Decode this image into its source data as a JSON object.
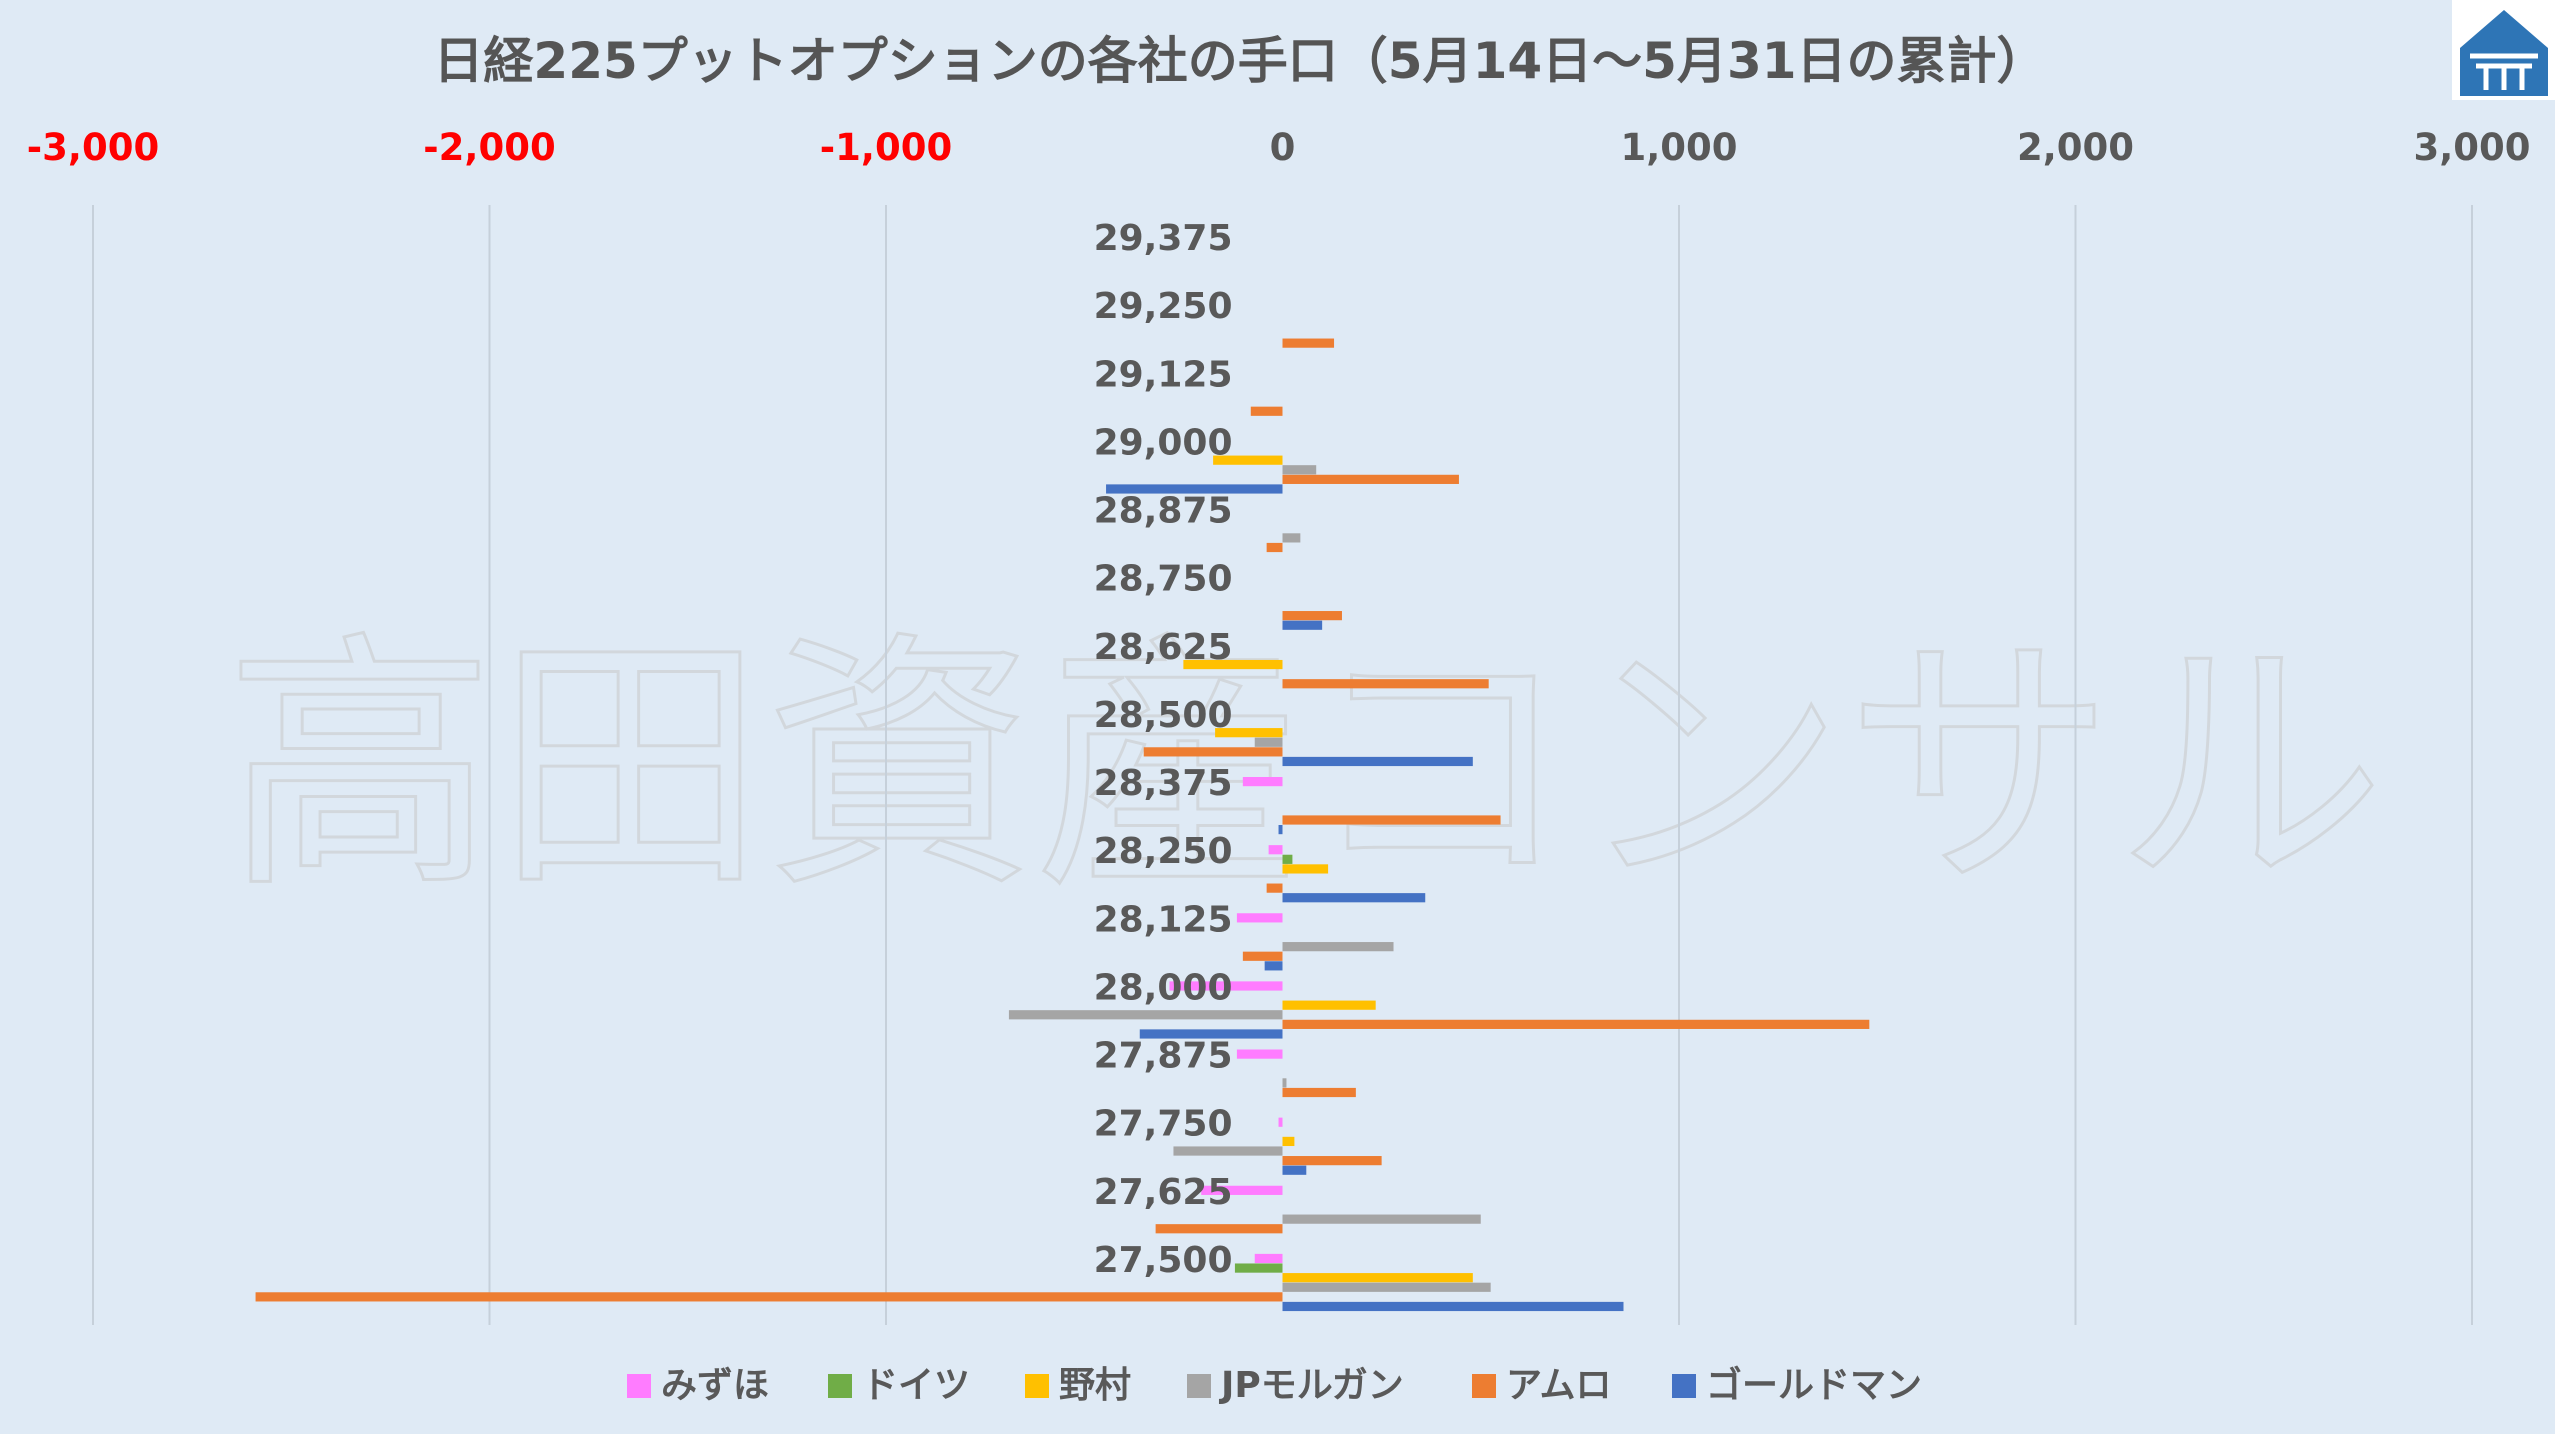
{
  "chart_data": {
    "type": "bar",
    "orientation": "horizontal",
    "title": "日経225プットオプションの各社の手口（5月14日～5月31日の累計）",
    "watermark": "高田資産コンサル",
    "xlim": [
      -3000,
      3000
    ],
    "xticks": [
      -3000,
      -2000,
      -1000,
      0,
      1000,
      2000,
      3000
    ],
    "xtick_labels": [
      "-3,000",
      "-2,000",
      "-1,000",
      "0",
      "1,000",
      "2,000",
      "3,000"
    ],
    "negative_tick_color": "#ff0000",
    "positive_tick_color": "#595959",
    "grid": true,
    "legend_position": "bottom",
    "categories": [
      "29,375",
      "29,250",
      "29,125",
      "29,000",
      "28,875",
      "28,750",
      "28,625",
      "28,500",
      "28,375",
      "28,250",
      "28,125",
      "28,000",
      "27,875",
      "27,750",
      "27,625",
      "27,500"
    ],
    "series": [
      {
        "name": "みずほ",
        "color": "#ff7cff",
        "values": [
          0,
          0,
          0,
          0,
          0,
          0,
          0,
          0,
          -100,
          -35,
          -115,
          -285,
          -115,
          -10,
          -205,
          -70
        ]
      },
      {
        "name": "ドイツ",
        "color": "#70ad47",
        "values": [
          0,
          0,
          0,
          0,
          0,
          0,
          0,
          0,
          0,
          25,
          0,
          0,
          0,
          0,
          0,
          -120
        ]
      },
      {
        "name": "野村",
        "color": "#ffc000",
        "values": [
          0,
          0,
          0,
          -175,
          0,
          0,
          -250,
          -170,
          0,
          115,
          0,
          235,
          0,
          30,
          0,
          480
        ]
      },
      {
        "name": "JPモルガン",
        "color": "#a5a5a5",
        "values": [
          0,
          0,
          0,
          85,
          45,
          0,
          0,
          -70,
          0,
          0,
          280,
          -690,
          10,
          -275,
          500,
          525
        ]
      },
      {
        "name": "アムロ",
        "color": "#ed7d31",
        "values": [
          0,
          130,
          -80,
          445,
          -40,
          150,
          520,
          -350,
          550,
          -40,
          -100,
          1480,
          185,
          250,
          -320,
          -2590
        ]
      },
      {
        "name": "ゴールドマン",
        "color": "#4472c4",
        "values": [
          0,
          0,
          0,
          -445,
          0,
          100,
          0,
          480,
          -10,
          360,
          -45,
          -360,
          0,
          60,
          0,
          860
        ]
      }
    ]
  },
  "logo": {
    "name": "house-logo",
    "color": "#2e75b6"
  }
}
